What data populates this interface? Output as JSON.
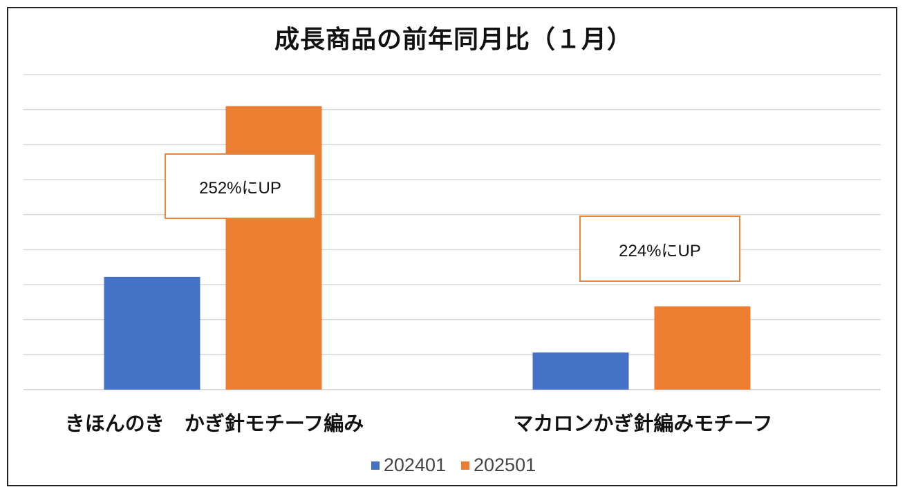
{
  "chart_data": {
    "type": "bar",
    "title": "成長商品の前年同月比（１月）",
    "categories": [
      "きほんのき　かぎ針モチーフ編み",
      "マカロンかぎ針編みモチーフ"
    ],
    "series": [
      {
        "name": "202401",
        "values": [
          161,
          53
        ],
        "color": "#4472c4"
      },
      {
        "name": "202501",
        "values": [
          405,
          119
        ],
        "color": "#ed7d31"
      }
    ],
    "ylim": [
      0,
      450
    ],
    "grid": true,
    "legend": "bottom",
    "annotations": [
      {
        "text": "252%にUP",
        "category": 0
      },
      {
        "text": "224%にUP",
        "category": 1
      }
    ]
  }
}
